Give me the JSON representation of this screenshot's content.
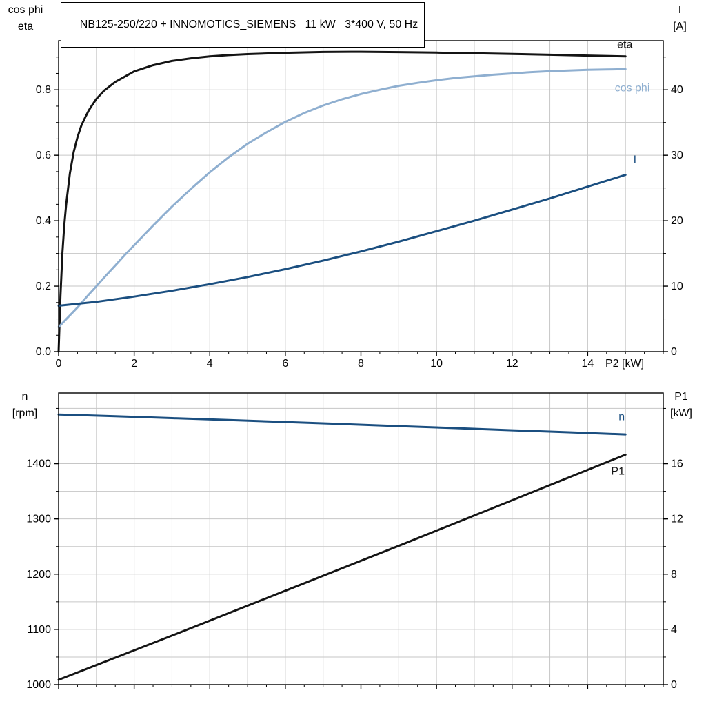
{
  "title": "NB125-250/220 + INNOMOTICS_SIEMENS   11 kW   3*400 V, 50 Hz",
  "colors": {
    "black_curve": "#141414",
    "dark_blue": "#1b4f80",
    "light_blue": "#8fafd0",
    "grid": "#c6c6c6",
    "axis": "#000000",
    "background": "#ffffff"
  },
  "chart_data": [
    {
      "type": "line",
      "title": "NB125-250/220 + INNOMOTICS_SIEMENS   11 kW   3*400 V, 50 Hz",
      "x_label": "P2 [kW]",
      "xlim": [
        0,
        16
      ],
      "x_grid_step": 1,
      "x_minor_step": 0.5,
      "show_x_tick_labels": true,
      "x_major_ticks": [
        [
          0,
          "0"
        ],
        [
          2,
          "2"
        ],
        [
          4,
          "4"
        ],
        [
          6,
          "6"
        ],
        [
          8,
          "8"
        ],
        [
          10,
          "10"
        ],
        [
          12,
          "12"
        ],
        [
          14,
          "14"
        ]
      ],
      "left_axis": {
        "title_lines": [
          "cos phi",
          "eta"
        ],
        "lim": [
          0,
          0.95
        ],
        "grid_step": 0.1,
        "minor_step": 0.05,
        "major_ticks": [
          [
            0,
            "0.0"
          ],
          [
            0.2,
            "0.2"
          ],
          [
            0.4,
            "0.4"
          ],
          [
            0.6,
            "0.6"
          ],
          [
            0.8,
            "0.8"
          ]
        ]
      },
      "right_axis": {
        "title_lines": [
          "I",
          "[A]"
        ],
        "lim": [
          0,
          47.5
        ],
        "minor_step": 5,
        "major_ticks": [
          [
            0,
            "0"
          ],
          [
            10,
            "10"
          ],
          [
            20,
            "20"
          ],
          [
            30,
            "30"
          ],
          [
            40,
            "40"
          ]
        ]
      },
      "series": [
        {
          "name": "eta",
          "axis": "left",
          "color": "black_curve",
          "label": {
            "x": 14.78,
            "y": 0.928,
            "anchor": "start"
          },
          "points": [
            [
              0,
              0
            ],
            [
              0.05,
              0.17
            ],
            [
              0.1,
              0.3
            ],
            [
              0.15,
              0.385
            ],
            [
              0.2,
              0.45
            ],
            [
              0.3,
              0.545
            ],
            [
              0.4,
              0.61
            ],
            [
              0.5,
              0.655
            ],
            [
              0.6,
              0.69
            ],
            [
              0.7,
              0.715
            ],
            [
              0.8,
              0.737
            ],
            [
              0.9,
              0.755
            ],
            [
              1,
              0.772
            ],
            [
              1.2,
              0.797
            ],
            [
              1.5,
              0.824
            ],
            [
              2,
              0.856
            ],
            [
              2.5,
              0.875
            ],
            [
              3,
              0.888
            ],
            [
              3.5,
              0.896
            ],
            [
              4,
              0.902
            ],
            [
              4.5,
              0.906
            ],
            [
              5,
              0.909
            ],
            [
              6,
              0.913
            ],
            [
              7,
              0.9155
            ],
            [
              8,
              0.916
            ],
            [
              9,
              0.915
            ],
            [
              10,
              0.9135
            ],
            [
              11,
              0.9115
            ],
            [
              12,
              0.9095
            ],
            [
              13,
              0.907
            ],
            [
              14,
              0.9045
            ],
            [
              15,
              0.902
            ]
          ]
        },
        {
          "name": "cos phi",
          "axis": "left",
          "color": "light_blue",
          "label": {
            "x": 15.18,
            "y": 0.795,
            "anchor": "middle"
          },
          "points": [
            [
              0,
              0.075
            ],
            [
              0.25,
              0.105
            ],
            [
              0.5,
              0.135
            ],
            [
              0.75,
              0.168
            ],
            [
              1,
              0.2
            ],
            [
              1.25,
              0.232
            ],
            [
              1.5,
              0.263
            ],
            [
              1.75,
              0.295
            ],
            [
              2,
              0.325
            ],
            [
              2.5,
              0.385
            ],
            [
              3,
              0.443
            ],
            [
              3.5,
              0.497
            ],
            [
              4,
              0.548
            ],
            [
              4.5,
              0.594
            ],
            [
              5,
              0.635
            ],
            [
              5.5,
              0.67
            ],
            [
              6,
              0.702
            ],
            [
              6.5,
              0.729
            ],
            [
              7,
              0.752
            ],
            [
              7.5,
              0.771
            ],
            [
              8,
              0.787
            ],
            [
              8.5,
              0.8
            ],
            [
              9,
              0.812
            ],
            [
              9.5,
              0.821
            ],
            [
              10,
              0.829
            ],
            [
              10.5,
              0.836
            ],
            [
              11,
              0.841
            ],
            [
              11.5,
              0.846
            ],
            [
              12,
              0.85
            ],
            [
              12.5,
              0.854
            ],
            [
              13,
              0.857
            ],
            [
              13.5,
              0.859
            ],
            [
              14,
              0.861
            ],
            [
              14.5,
              0.862
            ],
            [
              15,
              0.863
            ]
          ]
        },
        {
          "name": "I",
          "axis": "right",
          "color": "dark_blue",
          "label": {
            "x": 15.25,
            "y": 28.8,
            "anchor": "middle"
          },
          "points": [
            [
              0,
              7
            ],
            [
              1,
              7.6
            ],
            [
              2,
              8.4
            ],
            [
              3,
              9.3
            ],
            [
              4,
              10.3
            ],
            [
              5,
              11.4
            ],
            [
              6,
              12.6
            ],
            [
              7,
              13.9
            ],
            [
              8,
              15.3
            ],
            [
              9,
              16.8
            ],
            [
              10,
              18.4
            ],
            [
              11,
              20
            ],
            [
              12,
              21.7
            ],
            [
              13,
              23.4
            ],
            [
              14,
              25.2
            ],
            [
              15,
              27
            ]
          ]
        }
      ]
    },
    {
      "type": "line",
      "title": "",
      "x_label": "",
      "xlim": [
        0,
        16
      ],
      "x_grid_step": 1,
      "x_minor_step": 0.5,
      "show_x_tick_labels": false,
      "x_major_ticks": [
        [
          0,
          "0"
        ],
        [
          2,
          "2"
        ],
        [
          4,
          "4"
        ],
        [
          6,
          "6"
        ],
        [
          8,
          "8"
        ],
        [
          10,
          "10"
        ],
        [
          12,
          "12"
        ],
        [
          14,
          "14"
        ]
      ],
      "left_axis": {
        "title_lines": [
          "n",
          "[rpm]"
        ],
        "lim": [
          1000,
          1528
        ],
        "grid_step": 50,
        "minor_step": 50,
        "major_ticks": [
          [
            1000,
            "1000"
          ],
          [
            1100,
            "1100"
          ],
          [
            1200,
            "1200"
          ],
          [
            1300,
            "1300"
          ],
          [
            1400,
            "1400"
          ]
        ]
      },
      "right_axis": {
        "title_lines": [
          "P1",
          "[kW]"
        ],
        "lim": [
          0,
          21.12
        ],
        "minor_step": 2,
        "major_ticks": [
          [
            0,
            "0"
          ],
          [
            4,
            "4"
          ],
          [
            8,
            "8"
          ],
          [
            12,
            "12"
          ],
          [
            16,
            "16"
          ]
        ]
      },
      "series": [
        {
          "name": "n",
          "axis": "left",
          "color": "dark_blue",
          "label": {
            "x": 14.9,
            "y": 1479,
            "anchor": "middle"
          },
          "points": [
            [
              0,
              1489
            ],
            [
              1.5,
              1485.8
            ],
            [
              3,
              1482.5
            ],
            [
              4.5,
              1479
            ],
            [
              6,
              1475.5
            ],
            [
              7.5,
              1471.8
            ],
            [
              9,
              1468
            ],
            [
              10.5,
              1464.3
            ],
            [
              12,
              1460.5
            ],
            [
              13.5,
              1456.8
            ],
            [
              15,
              1453
            ]
          ]
        },
        {
          "name": "P1",
          "axis": "right",
          "color": "black_curve",
          "label": {
            "x": 14.8,
            "y": 15.2,
            "anchor": "middle"
          },
          "points": [
            [
              0,
              0.35
            ],
            [
              3,
              3.55
            ],
            [
              6,
              6.8
            ],
            [
              9,
              10.05
            ],
            [
              12,
              13.35
            ],
            [
              15,
              16.65
            ]
          ]
        }
      ]
    }
  ]
}
